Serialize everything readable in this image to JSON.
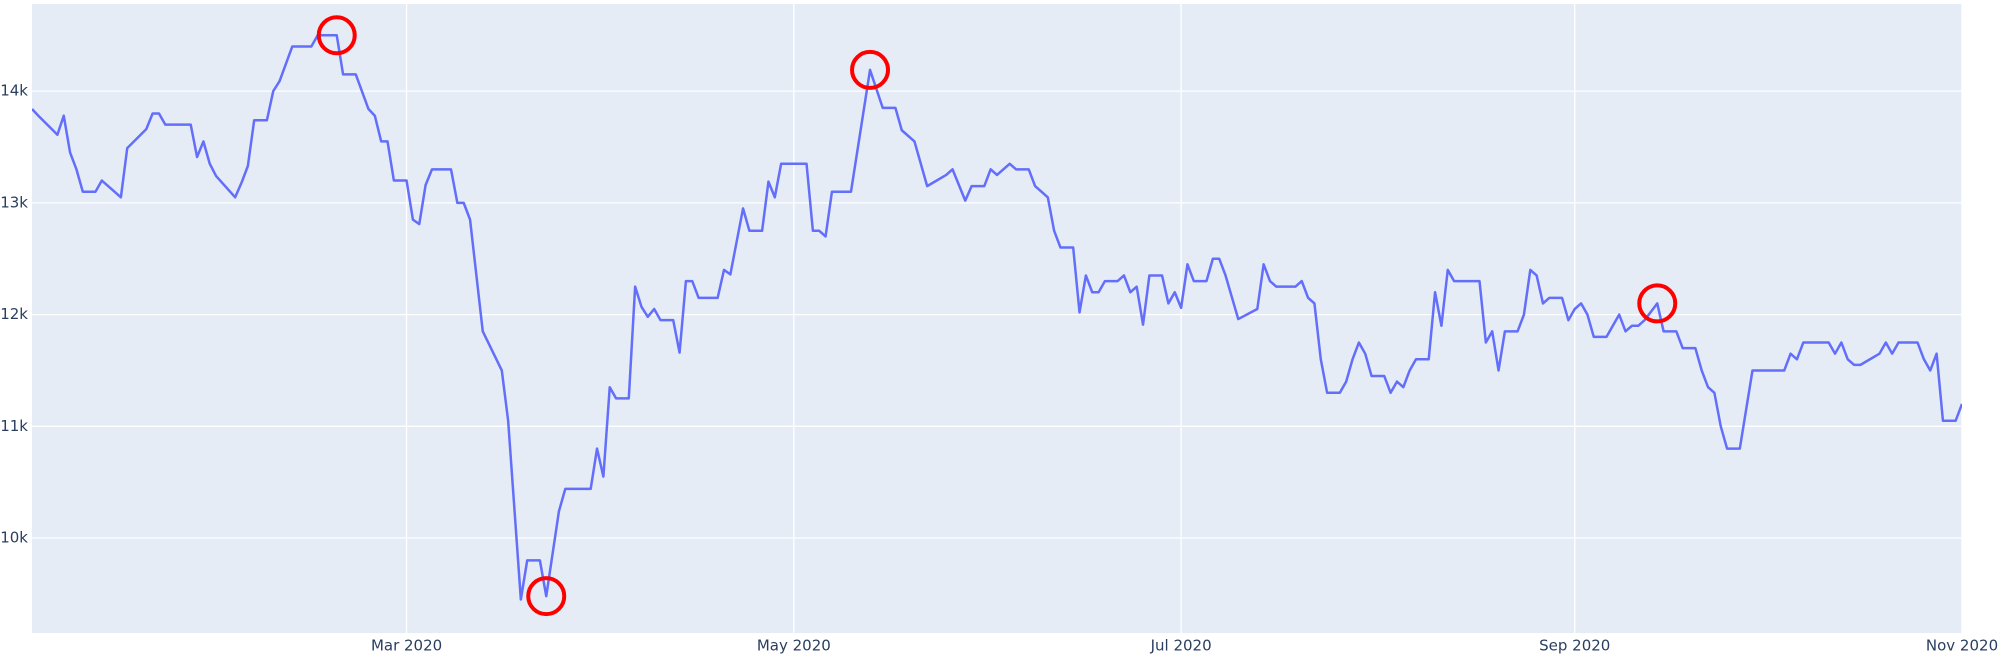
{
  "chart_data": {
    "type": "line",
    "x": [
      "2020-01-02",
      "2020-01-03",
      "2020-01-06",
      "2020-01-07",
      "2020-01-08",
      "2020-01-09",
      "2020-01-10",
      "2020-01-12",
      "2020-01-13",
      "2020-01-16",
      "2020-01-17",
      "2020-01-20",
      "2020-01-21",
      "2020-01-22",
      "2020-01-23",
      "2020-01-27",
      "2020-01-28",
      "2020-01-29",
      "2020-01-30",
      "2020-01-31",
      "2020-02-03",
      "2020-02-04",
      "2020-02-05",
      "2020-02-06",
      "2020-02-08",
      "2020-02-09",
      "2020-02-10",
      "2020-02-12",
      "2020-02-15",
      "2020-02-16",
      "2020-02-19",
      "2020-02-20",
      "2020-02-22",
      "2020-02-24",
      "2020-02-25",
      "2020-02-26",
      "2020-02-27",
      "2020-02-28",
      "2020-03-01",
      "2020-03-02",
      "2020-03-03",
      "2020-03-04",
      "2020-03-05",
      "2020-03-08",
      "2020-03-09",
      "2020-03-10",
      "2020-03-11",
      "2020-03-13",
      "2020-03-16",
      "2020-03-17",
      "2020-03-19",
      "2020-03-20",
      "2020-03-22",
      "2020-03-23",
      "2020-03-25",
      "2020-03-26",
      "2020-03-30",
      "2020-03-31",
      "2020-04-01",
      "2020-04-02",
      "2020-04-03",
      "2020-04-05",
      "2020-04-06",
      "2020-04-07",
      "2020-04-08",
      "2020-04-09",
      "2020-04-10",
      "2020-04-12",
      "2020-04-13",
      "2020-04-14",
      "2020-04-15",
      "2020-04-16",
      "2020-04-19",
      "2020-04-20",
      "2020-04-21",
      "2020-04-23",
      "2020-04-24",
      "2020-04-26",
      "2020-04-27",
      "2020-04-28",
      "2020-04-29",
      "2020-05-03",
      "2020-05-04",
      "2020-05-05",
      "2020-05-06",
      "2020-05-07",
      "2020-05-10",
      "2020-05-13",
      "2020-05-15",
      "2020-05-17",
      "2020-05-18",
      "2020-05-20",
      "2020-05-22",
      "2020-05-25",
      "2020-05-26",
      "2020-05-28",
      "2020-05-29",
      "2020-05-31",
      "2020-06-01",
      "2020-06-02",
      "2020-06-04",
      "2020-06-05",
      "2020-06-07",
      "2020-06-08",
      "2020-06-10",
      "2020-06-11",
      "2020-06-12",
      "2020-06-14",
      "2020-06-15",
      "2020-06-16",
      "2020-06-17",
      "2020-06-18",
      "2020-06-19",
      "2020-06-21",
      "2020-06-22",
      "2020-06-23",
      "2020-06-24",
      "2020-06-25",
      "2020-06-26",
      "2020-06-28",
      "2020-06-29",
      "2020-06-30",
      "2020-07-01",
      "2020-07-02",
      "2020-07-03",
      "2020-07-05",
      "2020-07-06",
      "2020-07-07",
      "2020-07-08",
      "2020-07-10",
      "2020-07-13",
      "2020-07-14",
      "2020-07-15",
      "2020-07-16",
      "2020-07-19",
      "2020-07-20",
      "2020-07-21",
      "2020-07-22",
      "2020-07-23",
      "2020-07-24",
      "2020-07-26",
      "2020-07-27",
      "2020-07-28",
      "2020-07-29",
      "2020-07-30",
      "2020-07-31",
      "2020-08-02",
      "2020-08-03",
      "2020-08-04",
      "2020-08-05",
      "2020-08-06",
      "2020-08-07",
      "2020-08-09",
      "2020-08-10",
      "2020-08-11",
      "2020-08-12",
      "2020-08-13",
      "2020-08-17",
      "2020-08-18",
      "2020-08-19",
      "2020-08-20",
      "2020-08-21",
      "2020-08-23",
      "2020-08-24",
      "2020-08-25",
      "2020-08-26",
      "2020-08-27",
      "2020-08-28",
      "2020-08-30",
      "2020-08-31",
      "2020-09-01",
      "2020-09-02",
      "2020-09-03",
      "2020-09-04",
      "2020-09-06",
      "2020-09-07",
      "2020-09-08",
      "2020-09-09",
      "2020-09-10",
      "2020-09-11",
      "2020-09-12",
      "2020-09-14",
      "2020-09-15",
      "2020-09-17",
      "2020-09-18",
      "2020-09-20",
      "2020-09-21",
      "2020-09-22",
      "2020-09-23",
      "2020-09-24",
      "2020-09-25",
      "2020-09-27",
      "2020-09-28",
      "2020-09-29",
      "2020-10-04",
      "2020-10-05",
      "2020-10-06",
      "2020-10-07",
      "2020-10-11",
      "2020-10-12",
      "2020-10-13",
      "2020-10-14",
      "2020-10-15",
      "2020-10-16",
      "2020-10-19",
      "2020-10-20",
      "2020-10-21",
      "2020-10-22",
      "2020-10-25",
      "2020-10-26",
      "2020-10-27",
      "2020-10-28",
      "2020-10-29",
      "2020-10-31",
      "2020-11-01"
    ],
    "series": [
      {
        "color": "#636efa",
        "values": [
          13840,
          13780,
          13610,
          13780,
          13450,
          13300,
          13100,
          13100,
          13200,
          13050,
          13490,
          13660,
          13800,
          13800,
          13700,
          13700,
          13410,
          13550,
          13350,
          13240,
          13050,
          13180,
          13330,
          13740,
          13740,
          14000,
          14090,
          14400,
          14400,
          14500,
          14500,
          14150,
          14150,
          13840,
          13780,
          13550,
          13550,
          13200,
          13200,
          12850,
          12810,
          13160,
          13300,
          13300,
          13000,
          13000,
          12850,
          11850,
          11500,
          11050,
          9450,
          9800,
          9800,
          9480,
          10240,
          10440,
          10440,
          10800,
          10550,
          11350,
          11250,
          11250,
          12250,
          12070,
          11980,
          12050,
          11950,
          11950,
          11660,
          12300,
          12300,
          12150,
          12150,
          12400,
          12360,
          12950,
          12750,
          12750,
          13190,
          13050,
          13350,
          13350,
          12750,
          12750,
          12700,
          13100,
          13100,
          14190,
          13850,
          13850,
          13650,
          13550,
          13150,
          13250,
          13300,
          13020,
          13150,
          13150,
          13300,
          13250,
          13350,
          13300,
          13300,
          13150,
          13050,
          12750,
          12600,
          12600,
          12020,
          12350,
          12200,
          12200,
          12300,
          12300,
          12350,
          12200,
          12250,
          11910,
          12350,
          12350,
          12100,
          12200,
          12060,
          12450,
          12300,
          12300,
          12500,
          12500,
          12350,
          11960,
          12050,
          12450,
          12300,
          12250,
          12250,
          12300,
          12150,
          12100,
          11600,
          11300,
          11300,
          11400,
          11600,
          11750,
          11650,
          11450,
          11450,
          11300,
          11400,
          11350,
          11500,
          11600,
          11600,
          12200,
          11900,
          12400,
          12300,
          12300,
          11750,
          11850,
          11500,
          11850,
          11850,
          12000,
          12400,
          12350,
          12100,
          12150,
          12150,
          11950,
          12050,
          12100,
          12000,
          11800,
          11800,
          11900,
          12000,
          11850,
          11900,
          11900,
          11950,
          12100,
          11850,
          11850,
          11700,
          11700,
          11500,
          11350,
          11300,
          11000,
          10800,
          10800,
          11150,
          11500,
          11500,
          11650,
          11600,
          11750,
          11750,
          11650,
          11750,
          11600,
          11550,
          11550,
          11650,
          11750,
          11650,
          11750,
          11750,
          11600,
          11500,
          11650,
          11050,
          11050,
          11200
        ]
      }
    ],
    "highlights": {
      "color": "red",
      "x": [
        "2020-02-19",
        "2020-03-23",
        "2020-05-13",
        "2020-09-14"
      ],
      "values": [
        14500,
        9480,
        14190,
        12100
      ]
    },
    "xlim": [
      "2020-01-02",
      "2020-11-01"
    ],
    "xticks": [
      {
        "value": "2020-03-01",
        "label": "Mar 2020"
      },
      {
        "value": "2020-05-01",
        "label": "May 2020"
      },
      {
        "value": "2020-07-01",
        "label": "Jul 2020"
      },
      {
        "value": "2020-09-01",
        "label": "Sep 2020"
      },
      {
        "value": "2020-11-01",
        "label": "Nov 2020"
      }
    ],
    "ylim": [
      9150,
      14780
    ],
    "yticks": [
      {
        "value": 10000,
        "label": "10k"
      },
      {
        "value": 11000,
        "label": "11k"
      },
      {
        "value": 12000,
        "label": "12k"
      },
      {
        "value": 13000,
        "label": "13k"
      },
      {
        "value": 14000,
        "label": "14k"
      }
    ],
    "grid": true
  }
}
